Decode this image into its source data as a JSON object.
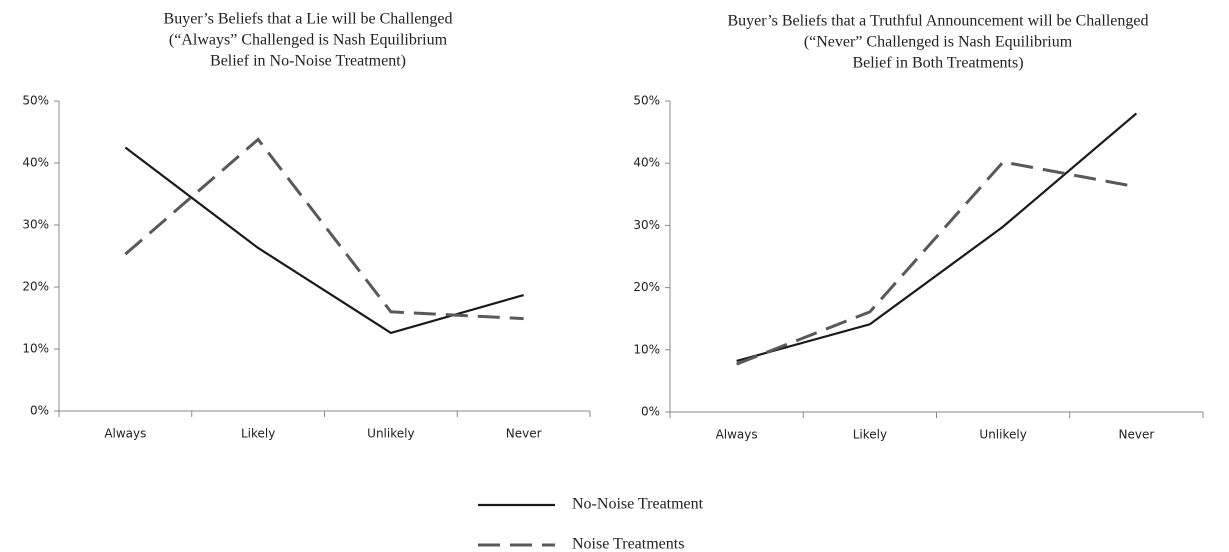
{
  "chart_data": [
    {
      "type": "line",
      "title": [
        "Buyer’s Beliefs that a Lie will be Challenged",
        "(“Always” Challenged is Nash Equilibrium",
        "Belief  in No-Noise Treatment)"
      ],
      "categories": [
        "Always",
        "Likely",
        "Unlikely",
        "Never"
      ],
      "series": [
        {
          "name": "No-Noise Treatment",
          "color": "#1a1a1a",
          "dashed": false,
          "values": [
            42.5,
            26.3,
            12.6,
            18.7
          ]
        },
        {
          "name": "Noise Treatments",
          "color": "#595959",
          "dashed": true,
          "values": [
            25.3,
            43.8,
            16,
            14.9
          ]
        }
      ],
      "ylim": [
        0,
        50
      ],
      "yticks": [
        {
          "value": 0,
          "label": "0%"
        },
        {
          "value": 10,
          "label": "10%"
        },
        {
          "value": 20,
          "label": "20%"
        },
        {
          "value": 30,
          "label": "30%"
        },
        {
          "value": 40,
          "label": "40%"
        },
        {
          "value": 50,
          "label": "50%"
        }
      ],
      "grid": false
    },
    {
      "type": "line",
      "title": [
        "Buyer’s Beliefs that a Truthful Announcement will be Challenged",
        "(“Never” Challenged is Nash Equilibrium",
        "Belief in Both Treatments)"
      ],
      "categories": [
        "Always",
        "Likely",
        "Unlikely",
        "Never"
      ],
      "series": [
        {
          "color": "#1a1a1a",
          "dashed": false,
          "values": [
            8.2,
            14.1,
            29.8,
            48
          ]
        },
        {
          "color": "#595959",
          "dashed": true,
          "values": [
            7.7,
            16.1,
            40.2,
            36.2
          ]
        }
      ],
      "ylim": [
        0,
        50
      ],
      "yticks": [
        {
          "value": 0,
          "label": "0%"
        },
        {
          "value": 10,
          "label": "10%"
        },
        {
          "value": 20,
          "label": "20%"
        },
        {
          "value": 30,
          "label": "30%"
        },
        {
          "value": 40,
          "label": "40%"
        },
        {
          "value": 50,
          "label": "50%"
        }
      ],
      "grid": false
    }
  ]
}
